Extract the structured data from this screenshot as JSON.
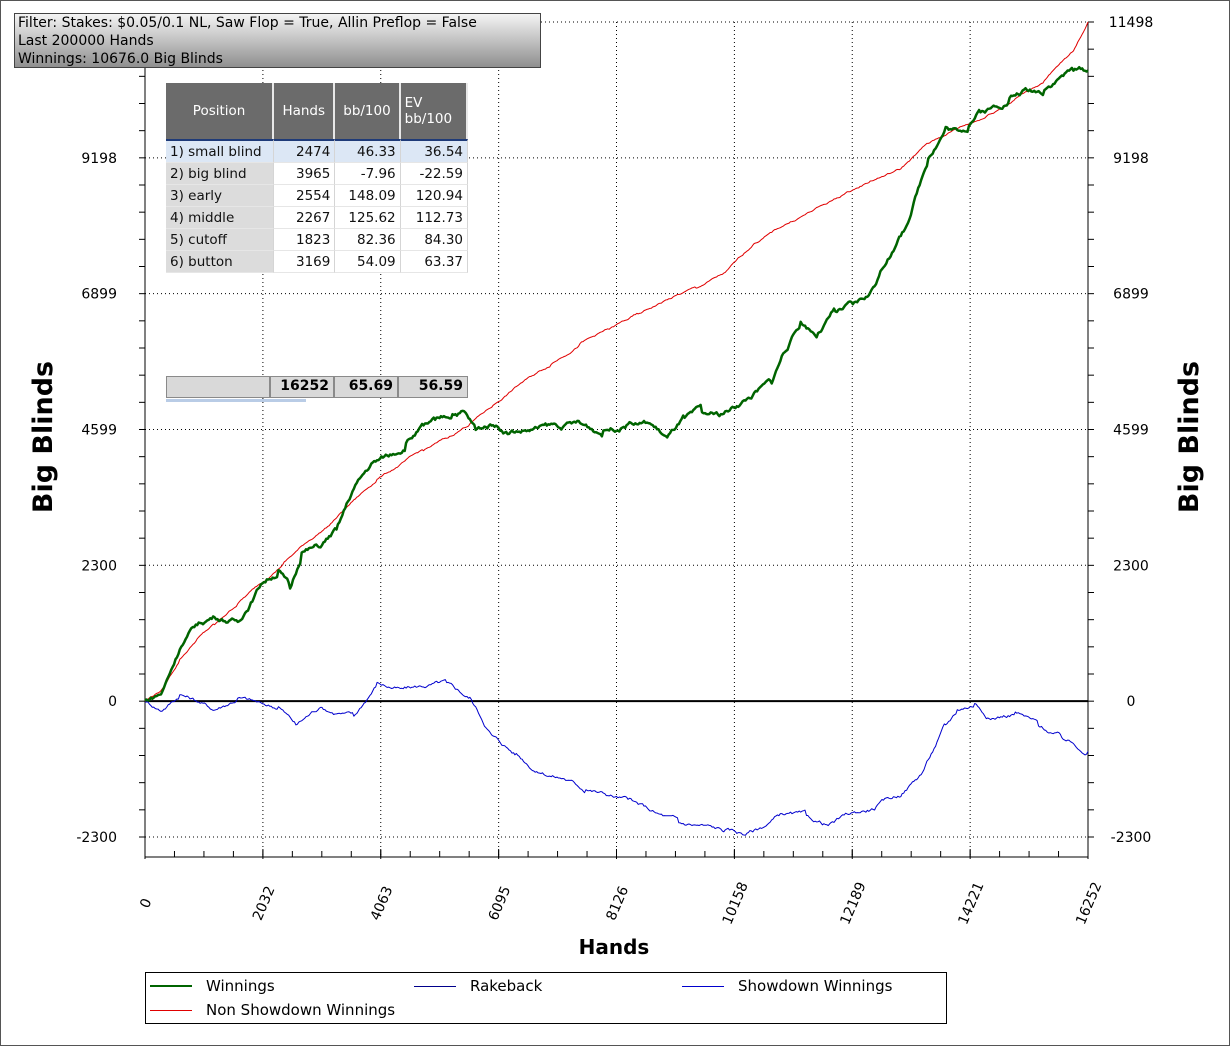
{
  "filter": {
    "line1": "Filter: Stakes: $0.05/0.1 NL, Saw Flop = True, Allin Preflop = False",
    "line2": "Last  200000 Hands",
    "line3": "Winnings: 10676.0 Big Blinds"
  },
  "table": {
    "headers": [
      "Position",
      "Hands",
      "bb/100",
      "EV bb/100"
    ],
    "rows": [
      {
        "position": "1) small blind",
        "hands": "2474",
        "bb100": "46.33",
        "ev": "36.54"
      },
      {
        "position": "2) big blind",
        "hands": "3965",
        "bb100": "-7.96",
        "ev": "-22.59"
      },
      {
        "position": "3) early",
        "hands": "2554",
        "bb100": "148.09",
        "ev": "120.94"
      },
      {
        "position": "4) middle",
        "hands": "2267",
        "bb100": "125.62",
        "ev": "112.73"
      },
      {
        "position": "5) cutoff",
        "hands": "1823",
        "bb100": "82.36",
        "ev": "84.30"
      },
      {
        "position": "6) button",
        "hands": "3169",
        "bb100": "54.09",
        "ev": "63.37"
      }
    ],
    "totals": {
      "hands": "16252",
      "bb100": "65.69",
      "ev": "56.59"
    }
  },
  "legend": [
    {
      "name": "Winnings",
      "color": "#006400"
    },
    {
      "name": "Rakeback",
      "color": "#00008b"
    },
    {
      "name": "Showdown Winnings",
      "color": "#0000cd"
    },
    {
      "name": "Non Showdown Winnings",
      "color": "#e00000"
    }
  ],
  "chart_data": {
    "type": "line",
    "xlabel": "Hands",
    "ylabel": "Big Blinds",
    "ylabel_right": "Big Blinds",
    "xlim": [
      0,
      16252
    ],
    "ylim": [
      -2300,
      11498
    ],
    "x_ticks": [
      "0",
      "2032",
      "4063",
      "6095",
      "8126",
      "10158",
      "12189",
      "14221",
      "16252"
    ],
    "y_ticks": [
      "11498",
      "9198",
      "6899",
      "4599",
      "2300",
      "0",
      "-2300"
    ],
    "grid": true,
    "legend_position": "bottom",
    "series": [
      {
        "name": "Winnings",
        "color": "#006400",
        "x": [
          0,
          300,
          600,
          900,
          1200,
          1600,
          2000,
          2300,
          2500,
          2700,
          3000,
          3300,
          3600,
          3900,
          4200,
          4500,
          4800,
          5000,
          5300,
          5500,
          5700,
          6000,
          6300,
          6700,
          7100,
          7500,
          7900,
          8300,
          8700,
          9000,
          9300,
          9600,
          9900,
          10200,
          10500,
          10800,
          11000,
          11300,
          11600,
          11900,
          12200,
          12500,
          12800,
          13100,
          13300,
          13500,
          13800,
          14000,
          14200,
          14400,
          14600,
          14900,
          15200,
          15500,
          15800,
          16000,
          16252
        ],
        "y": [
          0,
          150,
          900,
          1300,
          1450,
          1350,
          2000,
          2200,
          1900,
          2500,
          2600,
          2900,
          3600,
          4000,
          4150,
          4350,
          4650,
          4750,
          4850,
          4900,
          4600,
          4700,
          4550,
          4600,
          4650,
          4700,
          4550,
          4700,
          4700,
          4450,
          4800,
          4900,
          4850,
          5000,
          5200,
          5400,
          5900,
          6400,
          6200,
          6600,
          6700,
          6900,
          7500,
          8000,
          8600,
          9200,
          9700,
          9650,
          9750,
          10000,
          10050,
          10200,
          10350,
          10350,
          10600,
          10700,
          10676
        ]
      },
      {
        "name": "Non Showdown Winnings",
        "color": "#e00000",
        "x": [
          0,
          300,
          600,
          900,
          1200,
          1600,
          2000,
          2400,
          2800,
          3200,
          3600,
          4000,
          4400,
          4800,
          5200,
          5600,
          6000,
          6500,
          7000,
          7500,
          8000,
          8500,
          9000,
          9500,
          10000,
          10500,
          11000,
          11500,
          12000,
          12500,
          13000,
          13500,
          14000,
          14500,
          15000,
          15500,
          16000,
          16252
        ],
        "y": [
          0,
          200,
          700,
          1050,
          1300,
          1650,
          2000,
          2350,
          2700,
          3000,
          3400,
          3750,
          4000,
          4250,
          4450,
          4700,
          5000,
          5400,
          5700,
          6050,
          6300,
          6550,
          6800,
          7000,
          7250,
          7750,
          8050,
          8300,
          8550,
          8800,
          9000,
          9450,
          9700,
          9900,
          10200,
          10500,
          11000,
          11498
        ]
      },
      {
        "name": "Showdown Winnings",
        "color": "#0000cd",
        "x": [
          0,
          300,
          600,
          900,
          1200,
          1600,
          2000,
          2300,
          2600,
          3000,
          3300,
          3600,
          4000,
          4400,
          4800,
          5200,
          5600,
          6000,
          6400,
          6800,
          7200,
          7600,
          8000,
          8400,
          8800,
          9200,
          9600,
          10000,
          10300,
          10600,
          11000,
          11400,
          11800,
          12200,
          12600,
          13000,
          13400,
          13800,
          14000,
          14300,
          14600,
          15000,
          15400,
          15800,
          16252
        ],
        "y": [
          0,
          -150,
          100,
          0,
          -150,
          50,
          -50,
          -100,
          -400,
          -100,
          -200,
          -250,
          300,
          200,
          250,
          300,
          50,
          -600,
          -900,
          -1200,
          -1300,
          -1500,
          -1600,
          -1700,
          -1900,
          -2050,
          -2100,
          -2200,
          -2250,
          -2150,
          -1900,
          -1950,
          -2100,
          -1900,
          -1800,
          -1600,
          -1200,
          -400,
          -150,
          -50,
          -300,
          -200,
          -400,
          -600,
          -850
        ]
      },
      {
        "name": "Rakeback",
        "color": "#00008b",
        "x": [
          0,
          16252
        ],
        "y": [
          0,
          0
        ]
      }
    ]
  }
}
